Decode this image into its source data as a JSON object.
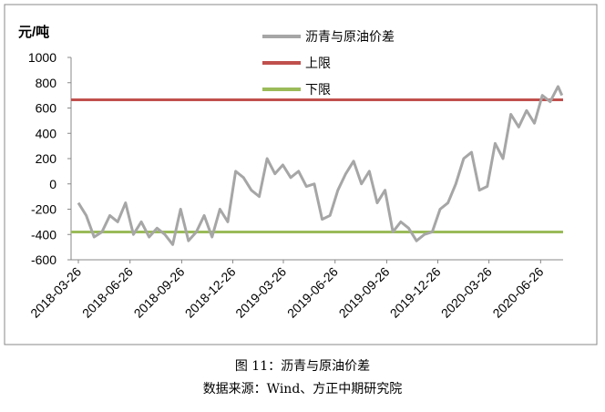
{
  "chart_data": {
    "type": "line",
    "unit_label": "元/吨",
    "caption": "图 11：沥青与原油价差",
    "source": "数据来源：Wind、方正中期研究院",
    "x": [
      "2018-03-26",
      "2018-04-09",
      "2018-04-23",
      "2018-05-07",
      "2018-05-21",
      "2018-06-04",
      "2018-06-18",
      "2018-07-02",
      "2018-07-16",
      "2018-07-30",
      "2018-08-13",
      "2018-08-27",
      "2018-09-10",
      "2018-09-24",
      "2018-10-08",
      "2018-10-22",
      "2018-11-05",
      "2018-11-19",
      "2018-12-03",
      "2018-12-17",
      "2018-12-31",
      "2019-01-14",
      "2019-01-28",
      "2019-02-11",
      "2019-02-25",
      "2019-03-11",
      "2019-03-25",
      "2019-04-08",
      "2019-04-22",
      "2019-05-06",
      "2019-05-20",
      "2019-06-03",
      "2019-06-17",
      "2019-07-01",
      "2019-07-15",
      "2019-07-29",
      "2019-08-12",
      "2019-08-26",
      "2019-09-09",
      "2019-09-23",
      "2019-10-07",
      "2019-10-21",
      "2019-11-04",
      "2019-11-18",
      "2019-12-02",
      "2019-12-16",
      "2019-12-30",
      "2020-01-13",
      "2020-01-27",
      "2020-02-10",
      "2020-02-24",
      "2020-03-09",
      "2020-03-23",
      "2020-04-06",
      "2020-04-20",
      "2020-05-04",
      "2020-05-18",
      "2020-06-01",
      "2020-06-15",
      "2020-06-29",
      "2020-07-13",
      "2020-07-27",
      "2020-08-03"
    ],
    "series": [
      {
        "name": "沥青与原油价差",
        "color": "#a6a6a6",
        "values": [
          -150,
          -250,
          -420,
          -380,
          -250,
          -300,
          -150,
          -400,
          -300,
          -420,
          -350,
          -400,
          -480,
          -200,
          -450,
          -380,
          -250,
          -420,
          -200,
          -300,
          100,
          50,
          -50,
          -100,
          200,
          80,
          150,
          50,
          100,
          -20,
          0,
          -280,
          -250,
          -50,
          80,
          180,
          0,
          100,
          -150,
          -50,
          -380,
          -300,
          -350,
          -450,
          -400,
          -380,
          -200,
          -150,
          0,
          200,
          250,
          -50,
          -20,
          320,
          200,
          550,
          450,
          580,
          480,
          700,
          650,
          770,
          700
        ]
      }
    ],
    "hlines": [
      {
        "name": "上限",
        "color": "#c0504d",
        "value": 665
      },
      {
        "name": "下限",
        "color": "#9bbb59",
        "value": -380
      }
    ],
    "xlim": [
      "2018-03-13",
      "2020-08-05"
    ],
    "xticks": [
      "2018-03-26",
      "2018-06-26",
      "2018-09-26",
      "2018-12-26",
      "2019-03-26",
      "2019-06-26",
      "2019-09-26",
      "2019-12-26",
      "2020-03-26",
      "2020-06-26"
    ],
    "ylim": [
      -600,
      1000
    ],
    "yticks": [
      -600,
      -400,
      -200,
      0,
      200,
      400,
      600,
      800,
      1000
    ]
  }
}
